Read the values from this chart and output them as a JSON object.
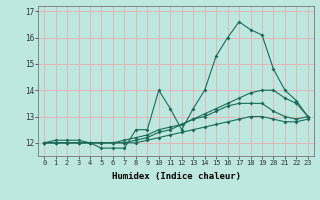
{
  "xlabel": "Humidex (Indice chaleur)",
  "background_color": "#bde8e0",
  "grid_color": "#e8b4b4",
  "line_color": "#1a6b5a",
  "xlim": [
    -0.5,
    23.5
  ],
  "ylim": [
    11.5,
    17.2
  ],
  "xticks": [
    0,
    1,
    2,
    3,
    4,
    5,
    6,
    7,
    8,
    9,
    10,
    11,
    12,
    13,
    14,
    15,
    16,
    17,
    18,
    19,
    20,
    21,
    22,
    23
  ],
  "yticks": [
    12,
    13,
    14,
    15,
    16,
    17
  ],
  "series": [
    [
      12.0,
      12.1,
      12.1,
      12.1,
      12.0,
      11.8,
      11.8,
      11.8,
      12.5,
      12.5,
      14.0,
      13.3,
      12.5,
      13.3,
      14.0,
      15.3,
      16.0,
      16.6,
      16.3,
      16.1,
      14.8,
      14.0,
      13.6,
      13.0
    ],
    [
      12.0,
      12.0,
      12.0,
      12.0,
      12.0,
      12.0,
      12.0,
      12.0,
      12.1,
      12.2,
      12.4,
      12.5,
      12.7,
      12.9,
      13.1,
      13.3,
      13.5,
      13.7,
      13.9,
      14.0,
      14.0,
      13.7,
      13.5,
      13.0
    ],
    [
      12.0,
      12.0,
      12.0,
      12.0,
      12.0,
      12.0,
      12.0,
      12.1,
      12.2,
      12.3,
      12.5,
      12.6,
      12.7,
      12.9,
      13.0,
      13.2,
      13.4,
      13.5,
      13.5,
      13.5,
      13.2,
      13.0,
      12.9,
      13.0
    ],
    [
      12.0,
      12.0,
      12.0,
      12.0,
      12.0,
      12.0,
      12.0,
      12.0,
      12.0,
      12.1,
      12.2,
      12.3,
      12.4,
      12.5,
      12.6,
      12.7,
      12.8,
      12.9,
      13.0,
      13.0,
      12.9,
      12.8,
      12.8,
      12.9
    ]
  ]
}
